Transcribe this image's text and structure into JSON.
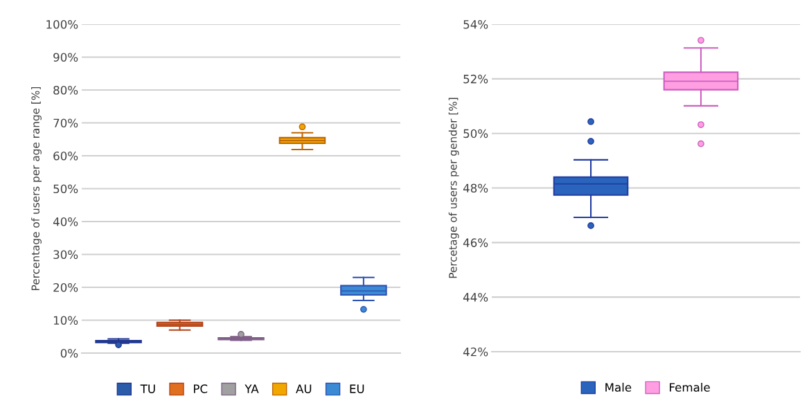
{
  "chart_data": [
    {
      "type": "box",
      "ylabel": "Percentage of users per age range [%]",
      "categories": [
        null,
        null,
        null,
        null,
        null
      ],
      "ylim": [
        0,
        100
      ],
      "yticks": [
        {
          "value": 0,
          "label": "0%"
        },
        {
          "value": 10,
          "label": "10%"
        },
        {
          "value": 20,
          "label": "20%"
        },
        {
          "value": 30,
          "label": "30%"
        },
        {
          "value": 40,
          "label": "40%"
        },
        {
          "value": 50,
          "label": "50%"
        },
        {
          "value": 60,
          "label": "60%"
        },
        {
          "value": 70,
          "label": "70%"
        },
        {
          "value": 80,
          "label": "80%"
        },
        {
          "value": 90,
          "label": "90%"
        },
        {
          "value": 100,
          "label": "100%"
        }
      ],
      "grid": "y",
      "legend": "bottom",
      "series": [
        {
          "name": "TU",
          "color": "#2a5caa",
          "boxes": [
            {
              "low": 3.0,
              "q1": 3.2,
              "median": 3.5,
              "q3": 3.8,
              "high": 4.3,
              "outliers": [
                2.5
              ]
            },
            null,
            null,
            null,
            null
          ]
        },
        {
          "name": "PC",
          "color": "#e07020",
          "boxes": [
            null,
            {
              "low": 7.0,
              "q1": 8.2,
              "median": 8.7,
              "q3": 9.3,
              "high": 10.0
            },
            null,
            null,
            null
          ]
        },
        {
          "name": "YA",
          "color": "#a0a0a0",
          "boxes": [
            null,
            null,
            {
              "low": 3.9,
              "q1": 4.1,
              "median": 4.4,
              "q3": 4.6,
              "high": 5.0,
              "outliers": [
                5.7
              ]
            },
            null,
            null
          ]
        },
        {
          "name": "AU",
          "color": "#f0a800",
          "boxes": [
            null,
            null,
            null,
            {
              "low": 61.9,
              "q1": 63.8,
              "median": 64.6,
              "q3": 65.5,
              "high": 67.0,
              "outliers": [
                68.8
              ]
            },
            null
          ]
        },
        {
          "name": "EU",
          "color": "#3b8ad4",
          "boxes": [
            null,
            null,
            null,
            null,
            {
              "low": 16.0,
              "q1": 17.7,
              "median": 18.9,
              "q3": 20.5,
              "high": 23.0,
              "outliers": [
                13.3
              ]
            }
          ]
        }
      ]
    },
    {
      "type": "box",
      "ylabel": "Percetage of users per gender [%]",
      "categories": [
        null,
        null
      ],
      "ylim": [
        42,
        54
      ],
      "yticks": [
        {
          "value": 42,
          "label": "42%"
        },
        {
          "value": 44,
          "label": "44%"
        },
        {
          "value": 46,
          "label": "46%"
        },
        {
          "value": 48,
          "label": "48%"
        },
        {
          "value": 50,
          "label": "50%"
        },
        {
          "value": 52,
          "label": "52%"
        },
        {
          "value": 54,
          "label": "54%"
        }
      ],
      "grid": "y",
      "legend": "bottom",
      "series": [
        {
          "name": "Male",
          "color": "#2a64bc",
          "boxes": [
            {
              "low": 46.92,
              "q1": 47.74,
              "median": 48.15,
              "q3": 48.4,
              "high": 49.03,
              "outliers": [
                46.62,
                49.71,
                50.43
              ]
            },
            null
          ]
        },
        {
          "name": "Female",
          "color": "#ff9fe2",
          "boxes": [
            null,
            {
              "low": 51.01,
              "q1": 51.6,
              "median": 51.91,
              "q3": 52.24,
              "high": 53.13,
              "outliers": [
                49.62,
                50.32,
                53.41
              ]
            }
          ]
        }
      ]
    }
  ]
}
